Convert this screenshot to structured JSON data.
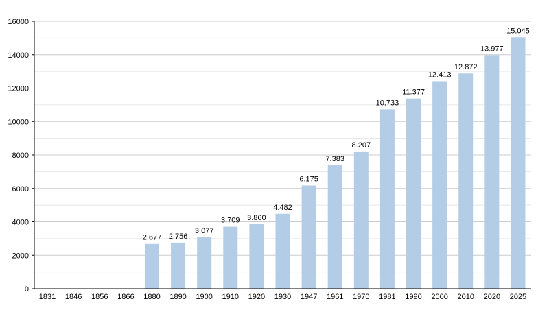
{
  "chart_data": {
    "type": "bar",
    "title": "",
    "xlabel": "",
    "ylabel": "",
    "categories": [
      "1831",
      "1846",
      "1856",
      "1866",
      "1880",
      "1890",
      "1900",
      "1910",
      "1920",
      "1930",
      "1947",
      "1961",
      "1970",
      "1981",
      "1990",
      "2000",
      "2010",
      "2020",
      "2025"
    ],
    "values": [
      null,
      null,
      null,
      null,
      2677,
      2756,
      3077,
      3709,
      3860,
      4482,
      6175,
      7383,
      8207,
      10733,
      11377,
      12413,
      12872,
      13977,
      15045
    ],
    "data_labels": [
      "",
      "",
      "",
      "",
      "2.677",
      "2.756",
      "3.077",
      "3.709",
      "3.860",
      "4.482",
      "6.175",
      "7.383",
      "8.207",
      "10.733",
      "11.377",
      "12.413",
      "12.872",
      "13.977",
      "15.045"
    ],
    "ylim": [
      0,
      16000
    ],
    "yticks": [
      0,
      2000,
      4000,
      6000,
      8000,
      10000,
      12000,
      14000,
      16000
    ],
    "ytick_labels": [
      "0",
      "2000",
      "4000",
      "6000",
      "8000",
      "10000",
      "12000",
      "14000",
      "16000"
    ],
    "grid": true,
    "legend": "none",
    "colors": {
      "bar": "#b3cde6",
      "gridline": "#cccccc",
      "minor_gridline": "#e6e6e6",
      "axis": "#000000"
    }
  }
}
